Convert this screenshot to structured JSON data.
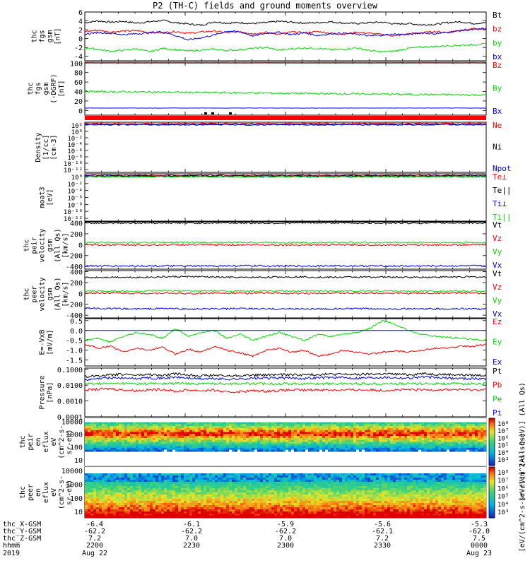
{
  "title": "P2 (TH-C) fields and ground moments overview",
  "colors": {
    "black": "#000000",
    "red": "#ff0000",
    "green": "#00dd00",
    "blue": "#0000ee"
  },
  "chart_data": [
    {
      "type": "line",
      "ylabel": [
        "thc",
        "fgs",
        "gsm",
        "[nT]"
      ],
      "ylim": [
        -5,
        6
      ],
      "yticks": [
        -4,
        -2,
        0,
        2,
        4,
        6
      ],
      "series": [
        {
          "name": "Bt",
          "color": "black",
          "values": [
            3.6,
            4.0,
            3.7,
            3.9,
            3.5,
            3.8,
            4.1,
            3.6,
            3.3,
            3.0,
            3.8,
            3.5,
            3.6,
            3.4,
            3.6,
            3.9,
            3.7,
            3.5,
            3.6,
            3.8,
            3.5,
            3.4,
            3.6,
            3.7,
            3.3,
            3.4,
            3.1,
            3.2,
            3.6,
            3.8,
            3.4,
            3.6
          ]
        },
        {
          "name": "bz",
          "color": "red",
          "values": [
            1.6,
            1.9,
            1.5,
            1.7,
            1.8,
            1.4,
            1.3,
            1.6,
            1.2,
            1.5,
            1.7,
            1.3,
            1.6,
            1.1,
            1.4,
            1.0,
            1.5,
            1.3,
            1.6,
            1.2,
            1.0,
            1.4,
            1.2,
            0.9,
            0.6,
            1.1,
            1.3,
            1.6,
            1.4,
            1.9,
            2.2,
            2.0
          ]
        },
        {
          "name": "by",
          "color": "green",
          "values": [
            -2.1,
            -2.4,
            -2.9,
            -2.6,
            -2.3,
            -3.0,
            -2.2,
            -2.5,
            -2.8,
            -2.6,
            -2.4,
            -2.7,
            -2.5,
            -2.2,
            -2.0,
            -2.6,
            -2.3,
            -2.1,
            -2.2,
            -2.5,
            -2.4,
            -2.1,
            -2.7,
            -3.0,
            -2.8,
            -2.2,
            -1.9,
            -1.8,
            -1.6,
            -1.5,
            -1.4,
            -1.2
          ]
        },
        {
          "name": "bx",
          "color": "blue",
          "values": [
            1.0,
            1.4,
            1.2,
            0.9,
            1.1,
            1.3,
            1.6,
            0.7,
            -0.3,
            0.2,
            0.8,
            1.7,
            1.5,
            0.6,
            1.2,
            1.4,
            0.9,
            1.3,
            0.7,
            1.1,
            1.2,
            1.0,
            0.6,
            0.8,
            1.0,
            0.9,
            1.3,
            1.1,
            1.4,
            1.8,
            2.0,
            2.3
          ]
        }
      ]
    },
    {
      "type": "line",
      "ylabel": [
        "thc",
        "fgs",
        "gsm",
        "(-DGRF)",
        "[nT]"
      ],
      "ylim": [
        -10,
        102
      ],
      "yticks": [
        0,
        20,
        40,
        60,
        80,
        100
      ],
      "series": [
        {
          "name": "Bz",
          "color": "red",
          "values": [
            100,
            100,
            100,
            100,
            100,
            100,
            100,
            100,
            100,
            100,
            100,
            100,
            100,
            100,
            100,
            100
          ]
        },
        {
          "name": "By",
          "color": "green",
          "values": [
            40,
            39.5,
            39,
            38.5,
            38,
            37.5,
            37,
            36.5,
            36,
            35.5,
            35,
            34.5,
            34,
            33.5,
            33,
            32.5
          ]
        },
        {
          "name": "Bx",
          "color": "blue",
          "values": [
            5,
            5,
            5,
            5,
            5,
            5,
            5,
            5,
            5,
            5,
            5,
            5,
            5,
            5,
            5,
            5
          ]
        }
      ]
    },
    {
      "type": "line",
      "ylabel": [
        "Density",
        "[1/cc]",
        "[cm-3]"
      ],
      "yticks": [
        "10²",
        "10⁰",
        "10⁻²",
        "10⁻⁴",
        "10⁻⁶",
        "10⁻⁸",
        "10⁻¹⁰",
        "10⁻¹²"
      ],
      "series": [
        {
          "name": "Ne",
          "color": "red"
        },
        {
          "name": "Ni",
          "color": "black"
        },
        {
          "name": "Npot",
          "color": "blue"
        }
      ]
    },
    {
      "type": "line",
      "ylabel": [
        "moat3",
        "[eV]"
      ],
      "yticks": [
        "10⁰",
        "10⁻²",
        "10⁻⁴",
        "10⁻⁶",
        "10⁻⁸",
        "10⁻¹⁰",
        "10⁻¹²"
      ],
      "series": [
        {
          "name": "Te⊥",
          "color": "red"
        },
        {
          "name": "Te||",
          "color": "black"
        },
        {
          "name": "Ti⊥",
          "color": "blue"
        },
        {
          "name": "Ti||",
          "color": "green"
        }
      ]
    },
    {
      "type": "line",
      "ylabel": [
        "thc",
        "peir",
        "velocity",
        "gsm",
        "(All Qs)",
        "[km/s]"
      ],
      "ylim": [
        -450,
        420
      ],
      "yticks": [
        -400,
        -200,
        0,
        200,
        400
      ],
      "series": [
        {
          "name": "Vt",
          "color": "black",
          "values": [
            395,
            400,
            398,
            402,
            397,
            401,
            399,
            396,
            400,
            403,
            398,
            400,
            397,
            399,
            401,
            398
          ]
        },
        {
          "name": "Vz",
          "color": "red",
          "values": [
            -5,
            -3,
            -6,
            -4,
            -2,
            -5,
            -3,
            -4,
            -6,
            -2,
            -4,
            -5,
            -3,
            -4,
            -2,
            -3
          ]
        },
        {
          "name": "Vy",
          "color": "green",
          "values": [
            38,
            40,
            37,
            41,
            39,
            38,
            42,
            40,
            37,
            39,
            41,
            38,
            40,
            39,
            37,
            40
          ]
        },
        {
          "name": "Vx",
          "color": "blue",
          "values": [
            -390,
            -392,
            -389,
            -391,
            -393,
            -390,
            -388,
            -391,
            -392,
            -389,
            -390,
            -391,
            -393,
            -390,
            -389,
            -391
          ]
        }
      ]
    },
    {
      "type": "line",
      "ylabel": [
        "thc",
        "peer",
        "velocity",
        "gsm",
        "(All Qs)",
        "[km/s]"
      ],
      "ylim": [
        -450,
        420
      ],
      "yticks": [
        -400,
        -200,
        0,
        200,
        400
      ],
      "series": [
        {
          "name": "Vt",
          "color": "black",
          "values": [
            290,
            300,
            295,
            305,
            310,
            298,
            292,
            300,
            306,
            295,
            300,
            302,
            296,
            299,
            304,
            300
          ]
        },
        {
          "name": "Vz",
          "color": "red",
          "values": [
            5,
            10,
            0,
            8,
            -5,
            12,
            3,
            6,
            -2,
            9,
            4,
            7,
            1,
            5,
            8,
            2
          ]
        },
        {
          "name": "Vy",
          "color": "green",
          "values": [
            40,
            45,
            38,
            50,
            42,
            47,
            39,
            44,
            41,
            46,
            43,
            48,
            40,
            45,
            42,
            44
          ]
        },
        {
          "name": "Vx",
          "color": "blue",
          "values": [
            -270,
            -280,
            -285,
            -275,
            -290,
            -283,
            -278,
            -286,
            -281,
            -288,
            -279,
            -284,
            -282,
            -287,
            -280,
            -285
          ]
        }
      ]
    },
    {
      "type": "line",
      "ylabel": [
        "E=-VxB",
        "[mV/m]"
      ],
      "ylim": [
        -1.8,
        0.6
      ],
      "yticks": [
        -1.5,
        -1.0,
        -0.5,
        0.0,
        0.5
      ],
      "yticklabels": [
        "-1.5",
        "-1.0",
        "-0.5",
        "0.0",
        "0.5"
      ],
      "series": [
        {
          "name": "Ez",
          "color": "red",
          "values": [
            -0.7,
            -0.9,
            -0.8,
            -1.1,
            -0.9,
            -1.0,
            -0.85,
            -1.2,
            -0.95,
            -1.1,
            -0.8,
            -1.0,
            -1.15,
            -1.3,
            -1.0,
            -0.9,
            -1.1,
            -1.0,
            -1.3,
            -1.2,
            -1.0,
            -1.1,
            -1.2,
            -1.1,
            -1.05,
            -1.1,
            -1.0,
            -0.9,
            -0.9,
            -0.8,
            -0.8,
            -0.7
          ]
        },
        {
          "name": "Ey",
          "color": "green",
          "values": [
            -0.5,
            -0.4,
            -0.6,
            -0.3,
            -0.1,
            -0.2,
            -0.4,
            0.1,
            -0.3,
            -0.1,
            0.0,
            -0.4,
            -0.2,
            -0.5,
            -0.3,
            -0.1,
            -0.3,
            -0.5,
            -0.2,
            -0.3,
            -0.2,
            -0.1,
            0.1,
            0.5,
            0.3,
            0.0,
            -0.2,
            -0.3,
            -0.35,
            -0.4,
            -0.45,
            -0.5
          ]
        },
        {
          "name": "Ex",
          "color": "blue",
          "values": [
            0,
            0,
            0,
            0,
            0,
            0,
            0,
            0,
            0,
            0,
            0,
            0,
            0,
            0,
            0,
            0,
            0,
            0,
            0,
            0,
            0,
            0,
            0,
            0,
            0,
            0,
            0,
            0,
            0,
            0,
            0,
            0
          ]
        }
      ]
    },
    {
      "type": "line",
      "ylabel": [
        "Pressure",
        "[nPa]"
      ],
      "log": true,
      "ylim": [
        0.0001,
        0.12
      ],
      "yticks": [
        0.0001,
        0.001,
        0.01,
        0.1
      ],
      "yticklabels": [
        "0.0001",
        "0.0010",
        "0.0100",
        "0.1000"
      ],
      "series": [
        {
          "name": "Pt",
          "color": "black",
          "values": [
            0.035,
            0.04,
            0.045,
            0.05,
            0.042,
            0.048,
            0.04,
            0.052,
            0.045,
            0.04,
            0.042,
            0.038,
            0.041,
            0.043,
            0.044,
            0.046,
            0.047,
            0.045,
            0.048,
            0.05,
            0.049,
            0.047,
            0.05,
            0.052,
            0.05,
            0.046,
            0.055,
            0.05,
            0.048,
            0.045,
            0.043,
            0.042
          ]
        },
        {
          "name": "Pb",
          "color": "red",
          "values": [
            0.005,
            0.0055,
            0.006,
            0.005,
            0.0045,
            0.005,
            0.0055,
            0.004,
            0.005,
            0.0045,
            0.0048,
            0.0035,
            0.004,
            0.0045,
            0.0042,
            0.0046,
            0.005,
            0.0048,
            0.0052,
            0.005,
            0.0049,
            0.0051,
            0.005,
            0.0047,
            0.005,
            0.0052,
            0.005,
            0.0051,
            0.0053,
            0.0052,
            0.005,
            0.0054
          ]
        },
        {
          "name": "Pe",
          "color": "green",
          "values": [
            0.012,
            0.013,
            0.0125,
            0.013,
            0.012,
            0.0128,
            0.0122,
            0.013,
            0.0126,
            0.0124,
            0.0128,
            0.0126,
            0.0127,
            0.0125,
            0.0124,
            0.0126,
            0.0125,
            0.0123,
            0.0124,
            0.0125,
            0.0124,
            0.0126,
            0.0125,
            0.0124,
            0.0123,
            0.0125,
            0.0124,
            0.0126,
            0.0125,
            0.0124,
            0.0125,
            0.0126
          ]
        },
        {
          "name": "Pi",
          "color": "blue",
          "values": [
            0.02,
            0.025,
            0.03,
            0.028,
            0.026,
            0.03,
            0.027,
            0.032,
            0.028,
            0.025,
            0.026,
            0.024,
            0.025,
            0.027,
            0.028,
            0.029,
            0.028,
            0.027,
            0.03,
            0.031,
            0.03,
            0.028,
            0.03,
            0.032,
            0.03,
            0.028,
            0.034,
            0.03,
            0.028,
            0.027,
            0.026,
            0.025
          ]
        }
      ]
    },
    {
      "type": "heatmap",
      "ylabel": [
        "thc",
        "peir",
        "en",
        "eflux",
        "eV",
        "(cm^2-s-",
        "sr-eV)"
      ],
      "yticks": [
        10,
        100,
        1000,
        10000
      ],
      "colorbar_label": "[eV/(cm^2-s-sr-eV)] (All Qs)",
      "colorbar_ticks": [
        "10⁸",
        "10⁷",
        "10⁶",
        "10⁵",
        "10⁴",
        "10³"
      ]
    },
    {
      "type": "heatmap",
      "ylabel": [
        "thc",
        "peer",
        "en",
        "eflux",
        "eV",
        "(cm^2-s-",
        "sr-eV)"
      ],
      "yticks": [
        10,
        100,
        1000,
        10000
      ],
      "colorbar_label": "[eV/(cm^2-s-sr-eV)] (All Qs)",
      "colorbar_ticks": [
        "10⁸",
        "10⁷",
        "10⁶",
        "10⁵",
        "10⁴",
        "10³"
      ]
    }
  ],
  "xaxis": {
    "rows": [
      {
        "label": "thc_X-GSM",
        "values": [
          "-6.4",
          "-6.1",
          "-5.9",
          "-5.6",
          "-5.3"
        ]
      },
      {
        "label": "thc_Y-GSM",
        "values": [
          "-62.2",
          "-62.2",
          "-62.2",
          "-62.1",
          "-62.0"
        ]
      },
      {
        "label": "thc_Z-GSM",
        "values": [
          "7.2",
          "7.0",
          "7.0",
          "7.2",
          "7.5"
        ]
      },
      {
        "label": "hhmm",
        "values": [
          "2200",
          "2230",
          "2300",
          "2330",
          "0000"
        ]
      },
      {
        "label": "2019",
        "values": [
          "Aug 22",
          "",
          "",
          "",
          "Aug 23"
        ]
      }
    ]
  }
}
